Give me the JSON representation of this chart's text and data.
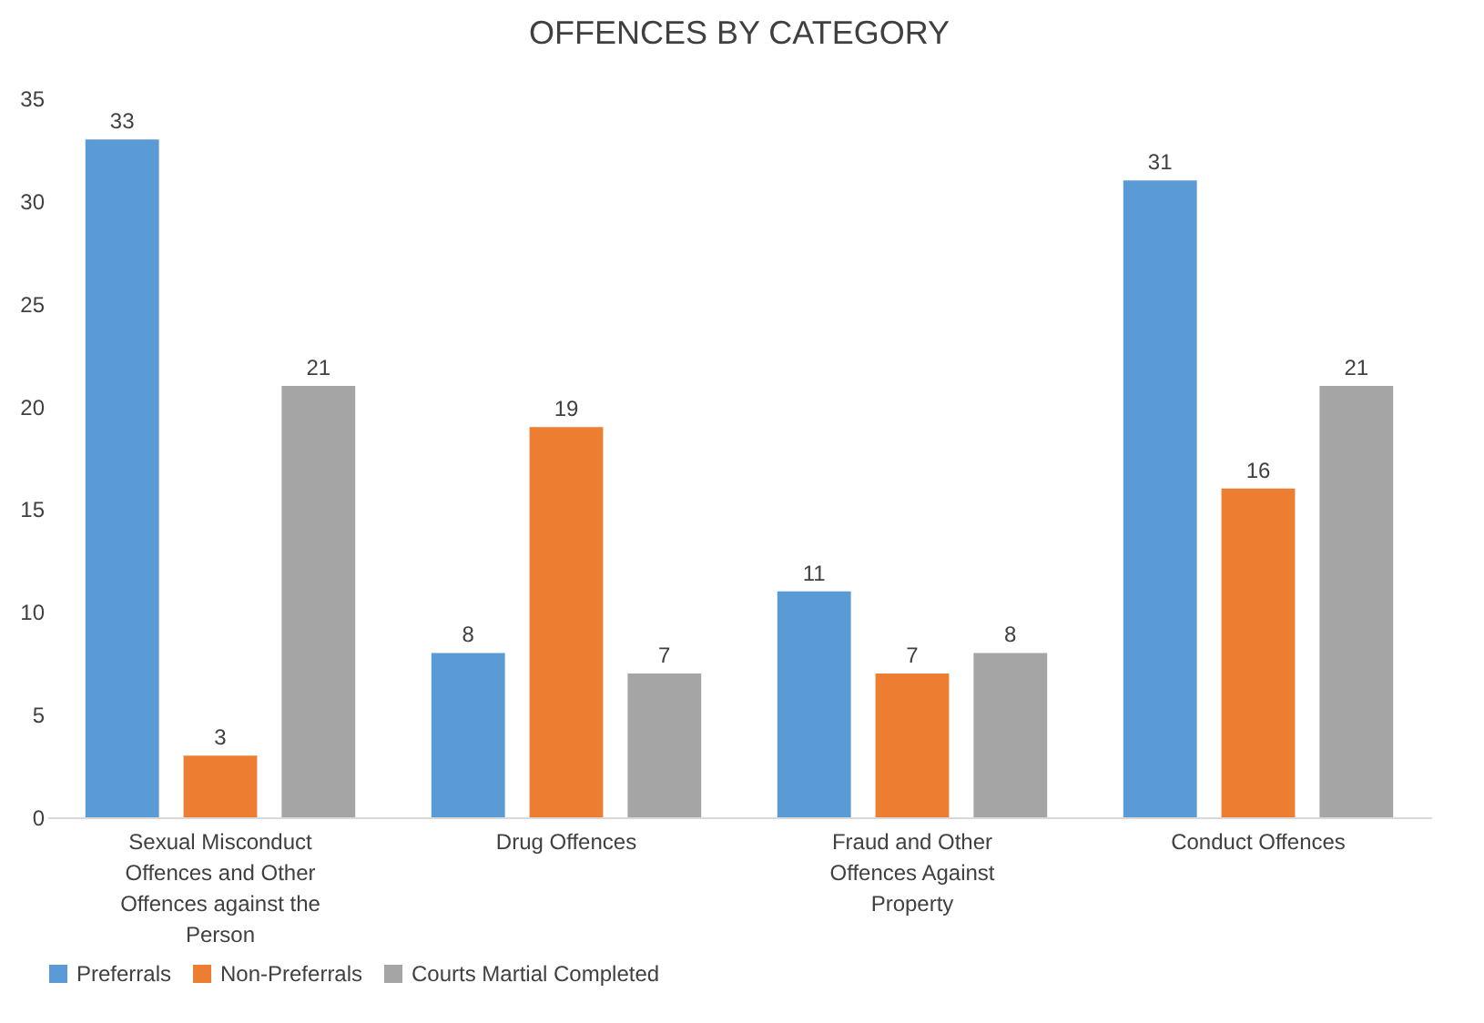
{
  "chart_data": {
    "type": "bar",
    "title": "OFFENCES BY CATEGORY",
    "categories": [
      "Sexual Misconduct Offences and Other Offences against the Person",
      "Drug Offences",
      "Fraud and Other Offences Against Property",
      "Conduct Offences"
    ],
    "series": [
      {
        "name": "Preferrals",
        "color": "#5b9bd5",
        "values": [
          33,
          8,
          11,
          31
        ]
      },
      {
        "name": "Non-Preferrals",
        "color": "#ed7d31",
        "values": [
          3,
          19,
          7,
          16
        ]
      },
      {
        "name": "Courts Martial Completed",
        "color": "#a5a5a5",
        "values": [
          21,
          7,
          8,
          21
        ]
      }
    ],
    "ylim": [
      0,
      35
    ],
    "yticks": [
      0,
      5,
      10,
      15,
      20,
      25,
      30,
      35
    ],
    "grid": false,
    "legend": "bottom",
    "data_labels": true
  }
}
